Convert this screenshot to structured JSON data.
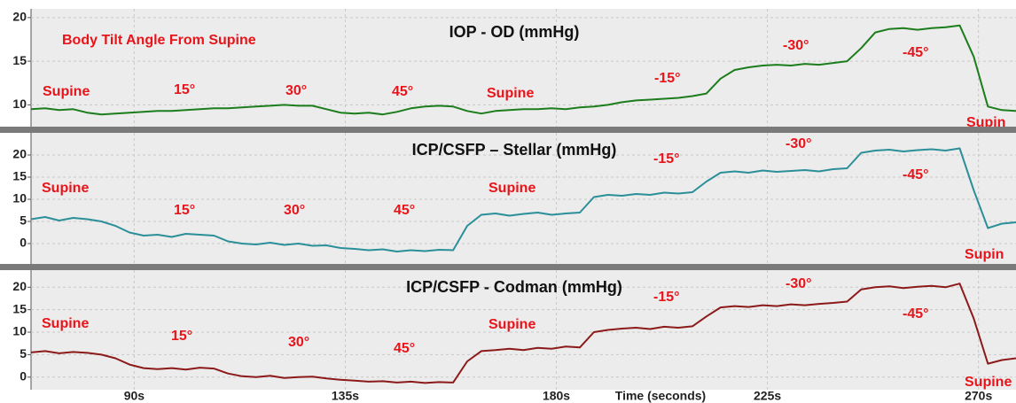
{
  "chart_data": [
    {
      "type": "line",
      "title": "IOP - OD (mmHg)",
      "annotations": [
        "Body Tilt Angle From Supine",
        "Supine",
        "15°",
        "30°",
        "45°",
        "Supine",
        "-15°",
        "-30°",
        "-45°",
        "Supin"
      ],
      "xlim": [
        68,
        278
      ],
      "xticks": [
        90,
        135,
        180,
        225,
        270
      ],
      "ylim": [
        7.5,
        21
      ],
      "yticks": [
        10,
        15,
        20
      ],
      "grid": true,
      "x": [
        68,
        71,
        74,
        77,
        80,
        83,
        86,
        89,
        92,
        95,
        98,
        101,
        104,
        107,
        110,
        113,
        116,
        119,
        122,
        125,
        128,
        131,
        134,
        137,
        140,
        143,
        146,
        149,
        152,
        155,
        158,
        161,
        164,
        167,
        170,
        173,
        176,
        179,
        182,
        185,
        188,
        191,
        194,
        197,
        200,
        203,
        206,
        209,
        212,
        215,
        218,
        221,
        224,
        227,
        230,
        233,
        236,
        239,
        242,
        245,
        248,
        251,
        254,
        257,
        260,
        263,
        266,
        269,
        272,
        275,
        278
      ],
      "series": [
        {
          "color": "#1c7d1c",
          "values": [
            9.5,
            9.6,
            9.4,
            9.5,
            9.1,
            8.9,
            9.0,
            9.1,
            9.2,
            9.3,
            9.3,
            9.4,
            9.5,
            9.6,
            9.6,
            9.7,
            9.8,
            9.9,
            10.0,
            9.9,
            9.9,
            9.5,
            9.1,
            9.0,
            9.1,
            8.9,
            9.2,
            9.6,
            9.8,
            9.9,
            9.8,
            9.3,
            9.0,
            9.3,
            9.4,
            9.5,
            9.5,
            9.6,
            9.5,
            9.7,
            9.8,
            10.0,
            10.3,
            10.5,
            10.6,
            10.7,
            10.8,
            11.0,
            11.3,
            13.0,
            14.0,
            14.3,
            14.5,
            14.6,
            14.5,
            14.7,
            14.6,
            14.8,
            15.0,
            16.5,
            18.3,
            18.7,
            18.8,
            18.6,
            18.8,
            18.9,
            19.1,
            15.5,
            9.8,
            9.4,
            9.3
          ]
        }
      ]
    },
    {
      "type": "line",
      "title": "ICP/CSFP – Stellar (mmHg)",
      "annotations": [
        "Supine",
        "15°",
        "30°",
        "45°",
        "Supine",
        "-15°",
        "-30°",
        "-45°",
        "Supin"
      ],
      "xlim": [
        68,
        278
      ],
      "xticks": [
        90,
        135,
        180,
        225,
        270
      ],
      "ylim": [
        -4.6,
        25
      ],
      "yticks": [
        0,
        5,
        10,
        15,
        20
      ],
      "grid": true,
      "x": [
        68,
        71,
        74,
        77,
        80,
        83,
        86,
        89,
        92,
        95,
        98,
        101,
        104,
        107,
        110,
        113,
        116,
        119,
        122,
        125,
        128,
        131,
        134,
        137,
        140,
        143,
        146,
        149,
        152,
        155,
        158,
        161,
        164,
        167,
        170,
        173,
        176,
        179,
        182,
        185,
        188,
        191,
        194,
        197,
        200,
        203,
        206,
        209,
        212,
        215,
        218,
        221,
        224,
        227,
        230,
        233,
        236,
        239,
        242,
        245,
        248,
        251,
        254,
        257,
        260,
        263,
        266,
        269,
        272,
        275,
        278
      ],
      "series": [
        {
          "color": "#2b8f99",
          "values": [
            5.5,
            6.0,
            5.2,
            5.8,
            5.5,
            5.0,
            4.0,
            2.5,
            1.8,
            2.0,
            1.5,
            2.2,
            2.0,
            1.8,
            0.5,
            0.0,
            -0.2,
            0.2,
            -0.3,
            0.0,
            -0.5,
            -0.4,
            -1.0,
            -1.2,
            -1.5,
            -1.3,
            -1.8,
            -1.5,
            -1.7,
            -1.4,
            -1.5,
            4.0,
            6.5,
            6.8,
            6.3,
            6.7,
            7.0,
            6.5,
            6.8,
            7.0,
            10.5,
            11.0,
            10.8,
            11.2,
            11.0,
            11.5,
            11.3,
            11.6,
            14.0,
            16.0,
            16.3,
            16.0,
            16.5,
            16.2,
            16.4,
            16.6,
            16.3,
            16.8,
            17.0,
            20.5,
            21.0,
            21.2,
            20.8,
            21.1,
            21.3,
            21.0,
            21.5,
            12.0,
            3.5,
            4.5,
            4.8
          ]
        }
      ]
    },
    {
      "type": "line",
      "title": "ICP/CSFP - Codman (mmHg)",
      "annotations": [
        "Supine",
        "15°",
        "30°",
        "45°",
        "Supine",
        "-15°",
        "-30°",
        "-45°",
        "Supine"
      ],
      "x_label": "Time (seconds)",
      "xlim": [
        68,
        278
      ],
      "xticks": [
        {
          "value": 90,
          "label": "90s"
        },
        {
          "value": 135,
          "label": "135s"
        },
        {
          "value": 180,
          "label": "180s"
        },
        {
          "value": 225,
          "label": "225s"
        },
        {
          "value": 270,
          "label": "270s"
        }
      ],
      "ylim": [
        -2.8,
        23.8
      ],
      "yticks": [
        0,
        5,
        10,
        15,
        20
      ],
      "grid": true,
      "x": [
        68,
        71,
        74,
        77,
        80,
        83,
        86,
        89,
        92,
        95,
        98,
        101,
        104,
        107,
        110,
        113,
        116,
        119,
        122,
        125,
        128,
        131,
        134,
        137,
        140,
        143,
        146,
        149,
        152,
        155,
        158,
        161,
        164,
        167,
        170,
        173,
        176,
        179,
        182,
        185,
        188,
        191,
        194,
        197,
        200,
        203,
        206,
        209,
        212,
        215,
        218,
        221,
        224,
        227,
        230,
        233,
        236,
        239,
        242,
        245,
        248,
        251,
        254,
        257,
        260,
        263,
        266,
        269,
        272,
        275,
        278
      ],
      "series": [
        {
          "color": "#8c1a1a",
          "values": [
            5.5,
            5.8,
            5.3,
            5.6,
            5.4,
            5.0,
            4.2,
            2.8,
            2.0,
            1.8,
            2.0,
            1.7,
            2.1,
            1.9,
            0.8,
            0.2,
            0.0,
            0.3,
            -0.2,
            0.0,
            0.1,
            -0.3,
            -0.6,
            -0.8,
            -1.0,
            -0.9,
            -1.2,
            -1.0,
            -1.3,
            -1.1,
            -1.2,
            3.5,
            5.8,
            6.0,
            6.3,
            6.0,
            6.5,
            6.3,
            6.8,
            6.6,
            10.0,
            10.5,
            10.8,
            11.0,
            10.7,
            11.2,
            11.0,
            11.3,
            13.5,
            15.5,
            15.8,
            15.6,
            16.0,
            15.8,
            16.2,
            16.0,
            16.3,
            16.5,
            16.8,
            19.5,
            20.0,
            20.2,
            19.8,
            20.1,
            20.3,
            20.0,
            20.8,
            13.0,
            3.0,
            3.8,
            4.2
          ]
        }
      ]
    }
  ]
}
